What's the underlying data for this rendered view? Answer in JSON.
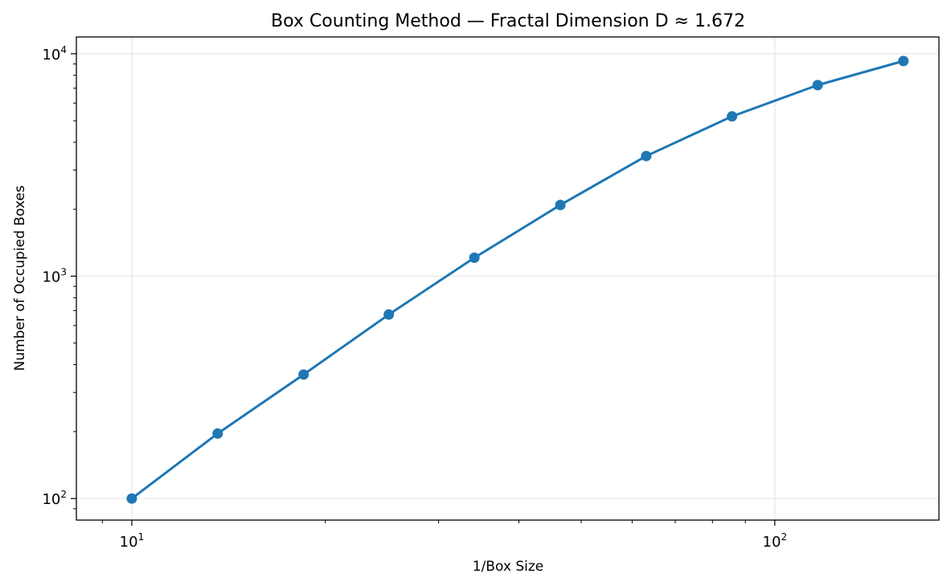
{
  "chart_data": {
    "type": "line",
    "title": "Box Counting Method — Fractal Dimension D ≈ 1.672",
    "xlabel": "1/Box Size",
    "ylabel": "Number of Occupied Boxes",
    "xscale": "log",
    "yscale": "log",
    "xlim": [
      8.2,
      180
    ],
    "ylim": [
      80,
      11900
    ],
    "grid": true,
    "legend": "none",
    "x_ticks": [
      {
        "base": "10",
        "exp": "1",
        "value": 10
      },
      {
        "base": "10",
        "exp": "2",
        "value": 100
      }
    ],
    "y_ticks": [
      {
        "base": "10",
        "exp": "2",
        "value": 100
      },
      {
        "base": "10",
        "exp": "3",
        "value": 1000
      },
      {
        "base": "10",
        "exp": "4",
        "value": 10000
      }
    ],
    "series": [
      {
        "color": "#1f77b4",
        "marker": "circle",
        "x": [
          10,
          13.6,
          18.5,
          25.1,
          34.1,
          46.4,
          63.1,
          85.8,
          116.6,
          158.5
        ],
        "y": [
          100,
          196,
          361,
          672,
          1210,
          2090,
          3470,
          5230,
          7230,
          9280
        ]
      }
    ]
  }
}
